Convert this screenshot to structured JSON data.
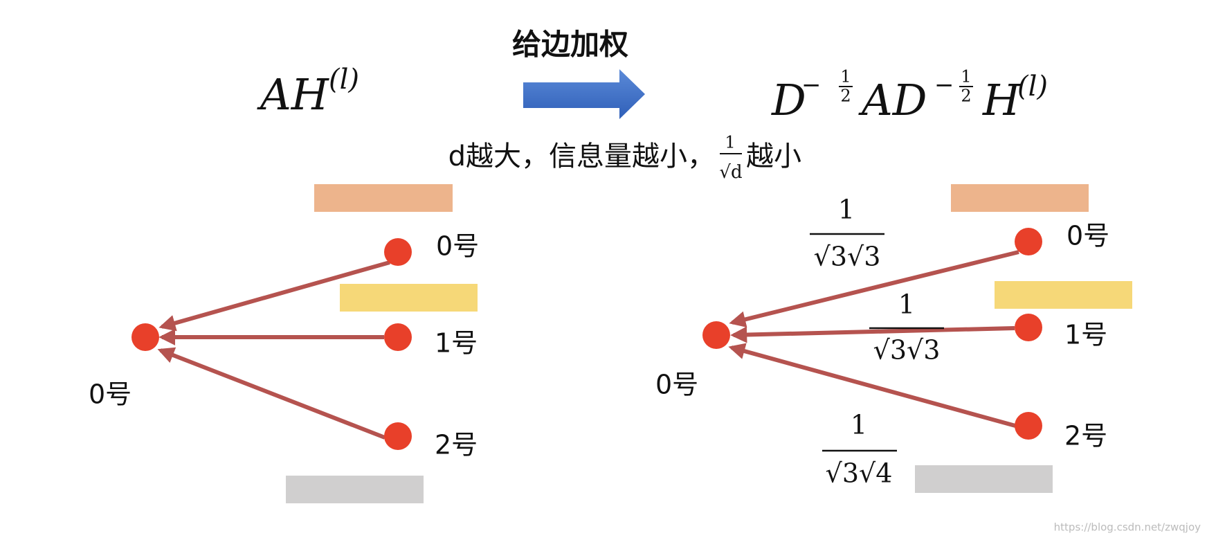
{
  "arrow_label": "给边加权",
  "formula_left": {
    "base": "AH",
    "sup": "(l)"
  },
  "formula_right": {
    "terms": [
      {
        "base": "D",
        "sup_sign": "−",
        "sup_num": "1",
        "sup_den": "2"
      },
      {
        "base": "AD",
        "sup_sign": "−",
        "sup_num": "1",
        "sup_den": "2"
      },
      {
        "base": "H",
        "sup": "(l)"
      }
    ]
  },
  "caption": {
    "before": "d越大，信息量越小，",
    "frac_num": "1",
    "frac_den": "√d",
    "after": "越小"
  },
  "left_graph": {
    "center_label": "0号",
    "targets": [
      "0号",
      "1号",
      "2号"
    ]
  },
  "right_graph": {
    "center_label": "0号",
    "targets": [
      "0号",
      "1号",
      "2号"
    ],
    "weights": [
      {
        "num": "1",
        "den": "√3√3"
      },
      {
        "num": "1",
        "den": "√3√3"
      },
      {
        "num": "1",
        "den": "√3√4"
      }
    ]
  },
  "watermark": "https://blog.csdn.net/zwqjoy"
}
